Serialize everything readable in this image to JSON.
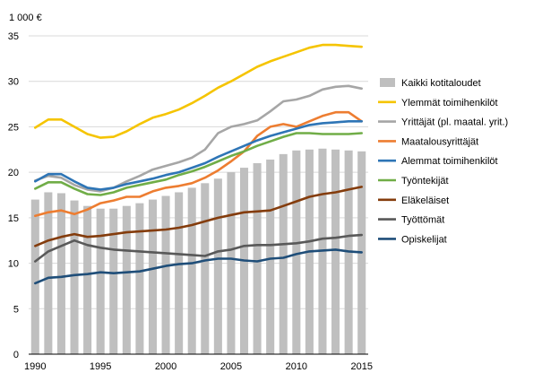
{
  "chart_data": {
    "type": "bar+line",
    "unit_label": "1 000 €",
    "ylim": [
      0,
      35
    ],
    "yticks": [
      0,
      5,
      10,
      15,
      20,
      25,
      30,
      35
    ],
    "x": [
      1990,
      1991,
      1992,
      1993,
      1994,
      1995,
      1996,
      1997,
      1998,
      1999,
      2000,
      2001,
      2002,
      2003,
      2004,
      2005,
      2006,
      2007,
      2008,
      2009,
      2010,
      2011,
      2012,
      2013,
      2014,
      2015
    ],
    "xticks": [
      1990,
      1995,
      2000,
      2005,
      2010,
      2015
    ],
    "grid": true,
    "legend_position": "right",
    "bar_series": {
      "name": "Kaikki kotitaloudet",
      "color": "#bfbfbf",
      "values": [
        17.0,
        17.8,
        17.7,
        16.9,
        16.3,
        16.0,
        16.0,
        16.3,
        16.6,
        17.0,
        17.4,
        17.8,
        18.3,
        18.8,
        19.3,
        20.0,
        20.5,
        21.0,
        21.4,
        22.0,
        22.4,
        22.5,
        22.6,
        22.5,
        22.4,
        22.3
      ]
    },
    "series": [
      {
        "name": "Ylemmät toimihenkilöt",
        "color": "#f5c400",
        "values": [
          24.9,
          25.8,
          25.8,
          25.0,
          24.2,
          23.8,
          23.9,
          24.5,
          25.3,
          26.0,
          26.4,
          26.9,
          27.6,
          28.4,
          29.3,
          30.0,
          30.8,
          31.6,
          32.2,
          32.7,
          33.2,
          33.7,
          34.0,
          34.0,
          33.9,
          33.8
        ]
      },
      {
        "name": "Yrittäjät (pl. maatal. yrit.)",
        "color": "#a6a6a6",
        "values": [
          19.1,
          19.6,
          19.4,
          18.6,
          18.1,
          17.9,
          18.3,
          19.0,
          19.6,
          20.3,
          20.7,
          21.1,
          21.6,
          22.5,
          24.3,
          25.0,
          25.3,
          25.7,
          26.7,
          27.8,
          28.0,
          28.4,
          29.1,
          29.4,
          29.5,
          29.2
        ]
      },
      {
        "name": "Maatalousyrittäjät",
        "color": "#ed7d31",
        "values": [
          15.2,
          15.6,
          15.8,
          15.4,
          15.9,
          16.6,
          16.9,
          17.3,
          17.3,
          17.9,
          18.3,
          18.5,
          18.8,
          19.4,
          20.2,
          21.2,
          22.3,
          24.0,
          25.0,
          25.3,
          25.0,
          25.6,
          26.2,
          26.6,
          26.6,
          25.6
        ]
      },
      {
        "name": "Alemmat toimihenkilöt",
        "color": "#2e75b6",
        "values": [
          19.0,
          19.8,
          19.8,
          19.0,
          18.3,
          18.1,
          18.3,
          18.7,
          19.0,
          19.3,
          19.7,
          20.0,
          20.5,
          21.0,
          21.7,
          22.3,
          22.9,
          23.5,
          24.0,
          24.4,
          24.8,
          25.2,
          25.4,
          25.5,
          25.6,
          25.6
        ]
      },
      {
        "name": "Työntekijät",
        "color": "#70ad47",
        "values": [
          18.2,
          18.9,
          18.9,
          18.2,
          17.6,
          17.5,
          17.8,
          18.3,
          18.6,
          18.9,
          19.2,
          19.7,
          20.1,
          20.6,
          21.2,
          21.8,
          22.3,
          22.9,
          23.4,
          23.9,
          24.3,
          24.3,
          24.2,
          24.2,
          24.2,
          24.3
        ]
      },
      {
        "name": "Eläkeläiset",
        "color": "#843c0c",
        "values": [
          11.9,
          12.5,
          12.9,
          13.2,
          12.9,
          13.0,
          13.2,
          13.4,
          13.5,
          13.6,
          13.7,
          13.9,
          14.2,
          14.6,
          15.0,
          15.3,
          15.6,
          15.7,
          15.8,
          16.3,
          16.8,
          17.3,
          17.6,
          17.8,
          18.1,
          18.4
        ]
      },
      {
        "name": "Työttömät",
        "color": "#595959",
        "values": [
          10.2,
          11.3,
          11.9,
          12.5,
          12.0,
          11.7,
          11.5,
          11.4,
          11.3,
          11.2,
          11.1,
          11.0,
          10.9,
          10.8,
          11.3,
          11.5,
          11.9,
          12.0,
          12.0,
          12.1,
          12.2,
          12.4,
          12.7,
          12.8,
          13.0,
          13.1
        ]
      },
      {
        "name": "Opiskelijat",
        "color": "#1f4e79",
        "values": [
          7.8,
          8.4,
          8.5,
          8.7,
          8.8,
          9.0,
          8.9,
          9.0,
          9.1,
          9.4,
          9.7,
          9.9,
          10.0,
          10.3,
          10.5,
          10.5,
          10.3,
          10.2,
          10.5,
          10.6,
          11.0,
          11.3,
          11.4,
          11.5,
          11.3,
          11.2
        ]
      }
    ]
  }
}
